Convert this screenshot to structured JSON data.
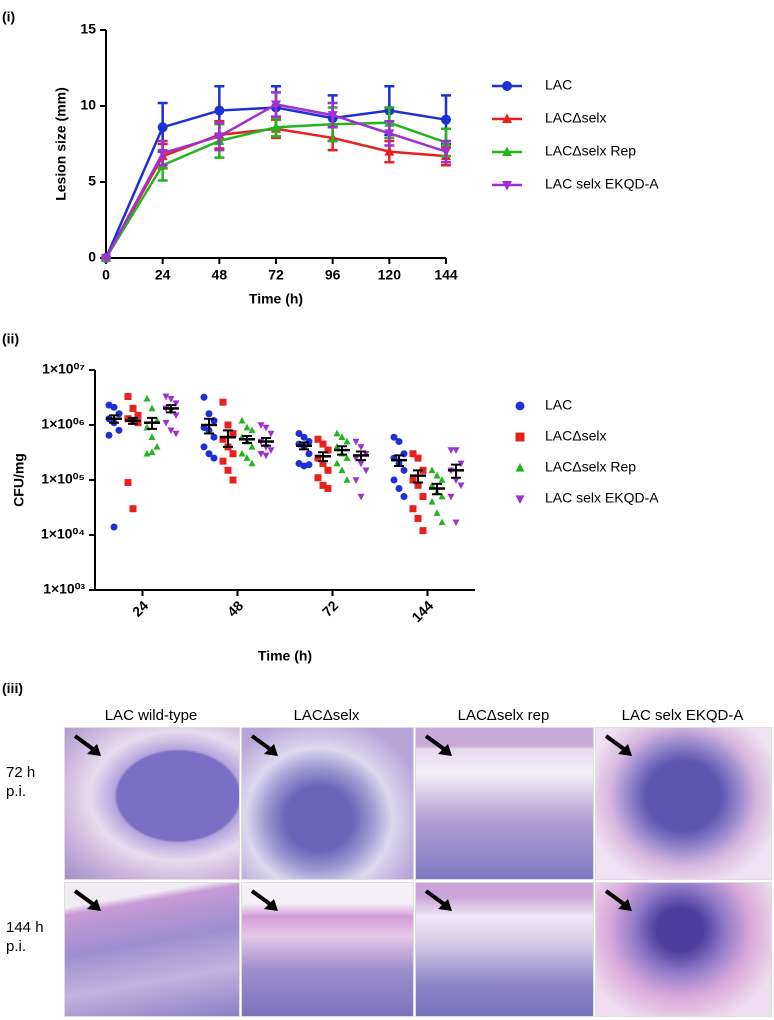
{
  "chart_data": [
    {
      "type": "line",
      "label": "(i)",
      "ylabel": "Lesion size (mm)",
      "xlabel": "Time (h)",
      "x": [
        0,
        24,
        48,
        72,
        96,
        120,
        144
      ],
      "xlim": [
        0,
        144
      ],
      "xticks": [
        0,
        24,
        48,
        72,
        96,
        120,
        144
      ],
      "ylim": [
        0,
        15
      ],
      "yticks": [
        0,
        5,
        10,
        15
      ],
      "series": [
        {
          "name": "LAC",
          "color": "#1d2fd6",
          "marker": "circle",
          "values": [
            0,
            8.6,
            9.7,
            9.9,
            9.2,
            9.7,
            9.1
          ],
          "errors": [
            0,
            1.6,
            1.6,
            1.4,
            1.5,
            1.6,
            1.6
          ]
        },
        {
          "name": "LACΔselx",
          "color": "#e8201e",
          "marker": "triangle",
          "values": [
            0,
            6.7,
            8.1,
            8.5,
            7.9,
            7.0,
            6.7
          ],
          "errors": [
            0,
            0.8,
            0.9,
            0.6,
            0.8,
            0.7,
            0.6
          ]
        },
        {
          "name": "LACΔselx Rep",
          "color": "#22b51f",
          "marker": "triangle",
          "values": [
            0,
            6.1,
            7.7,
            8.6,
            8.8,
            8.9,
            7.6
          ],
          "errors": [
            0,
            1.0,
            1.1,
            0.6,
            1.1,
            1.0,
            0.9
          ]
        },
        {
          "name": "LAC selx EKQD-A",
          "color": "#a030d0",
          "marker": "triangle-down",
          "values": [
            0,
            6.9,
            8.0,
            10.1,
            9.4,
            8.2,
            7.0
          ],
          "errors": [
            0,
            0.8,
            0.9,
            0.8,
            0.8,
            0.8,
            0.7
          ]
        }
      ]
    },
    {
      "type": "dot",
      "label": "(ii)",
      "ylabel": "CFU/mg",
      "xlabel": "Time (h)",
      "log_scale": true,
      "categories": [
        "24",
        "48",
        "72",
        "144"
      ],
      "ylim": [
        1000,
        10000000
      ],
      "yticks": [
        {
          "value": 1000,
          "label": "1×10⁰³"
        },
        {
          "value": 10000,
          "label": "1×10⁰⁴"
        },
        {
          "value": 100000,
          "label": "1×10⁰⁵"
        },
        {
          "value": 1000000,
          "label": "1×10⁰⁶"
        },
        {
          "value": 10000000,
          "label": "1×10⁰⁷"
        }
      ],
      "series": [
        {
          "name": "LAC",
          "color": "#1d2fd6",
          "marker": "circle",
          "values": [
            [
              2300000,
              2100000,
              1600000,
              1300000,
              1100000,
              800000,
              650000,
              14000
            ],
            [
              3200000,
              1600000,
              1200000,
              900000,
              800000,
              600000,
              400000,
              300000,
              250000
            ],
            [
              700000,
              600000,
              500000,
              450000,
              400000,
              300000,
              200000,
              180000,
              190000
            ],
            [
              600000,
              500000,
              300000,
              250000,
              200000,
              150000,
              100000,
              70000,
              50000
            ]
          ],
          "means": [
            1300000,
            1000000,
            420000,
            230000
          ],
          "errors": [
            200000,
            300000,
            60000,
            50000
          ]
        },
        {
          "name": "LACΔselx",
          "color": "#e8201e",
          "marker": "square",
          "values": [
            [
              3300000,
              2000000,
              1500000,
              1300000,
              1200000,
              1100000,
              90000,
              30000
            ],
            [
              2600000,
              1000000,
              700000,
              550000,
              400000,
              300000,
              220000,
              150000,
              100000
            ],
            [
              550000,
              450000,
              350000,
              250000,
              200000,
              150000,
              110000,
              80000,
              70000
            ],
            [
              300000,
              250000,
              150000,
              100000,
              80000,
              50000,
              30000,
              20000,
              12000
            ]
          ],
          "means": [
            1200000,
            600000,
            270000,
            120000
          ],
          "errors": [
            150000,
            200000,
            50000,
            30000
          ]
        },
        {
          "name": "LACΔselx Rep",
          "color": "#22b51f",
          "marker": "triangle",
          "values": [
            [
              3000000,
              2000000,
              1200000,
              900000,
              600000,
              400000,
              300000,
              320000
            ],
            [
              1200000,
              900000,
              800000,
              600000,
              500000,
              400000,
              300000,
              250000,
              200000
            ],
            [
              700000,
              600000,
              500000,
              400000,
              300000,
              250000,
              200000,
              150000,
              100000
            ],
            [
              150000,
              120000,
              100000,
              80000,
              60000,
              50000,
              40000,
              25000,
              17000
            ]
          ],
          "means": [
            1100000,
            550000,
            350000,
            70000
          ],
          "errors": [
            250000,
            80000,
            60000,
            15000
          ]
        },
        {
          "name": "LAC selx EKQD-A",
          "color": "#a030d0",
          "marker": "triangle-down",
          "values": [
            [
              3300000,
              3000000,
              2500000,
              2000000,
              1800000,
              1500000,
              1100000,
              800000,
              700000
            ],
            [
              1000000,
              900000,
              700000,
              500000,
              400000,
              350000,
              300000,
              280000
            ],
            [
              500000,
              400000,
              300000,
              250000,
              200000,
              150000,
              100000,
              50000
            ],
            [
              350000,
              350000,
              200000,
              150000,
              100000,
              80000,
              50000,
              17000
            ]
          ],
          "means": [
            2000000,
            500000,
            280000,
            150000
          ],
          "errors": [
            300000,
            80000,
            50000,
            40000
          ]
        }
      ]
    }
  ],
  "micrographs": {
    "label": "(iii)",
    "columns": [
      "LAC wild-type",
      "LACΔselx",
      "LACΔselx rep",
      "LAC selx EKQD-A"
    ],
    "rows": [
      "72 h p.i.",
      "144 h p.i."
    ]
  }
}
